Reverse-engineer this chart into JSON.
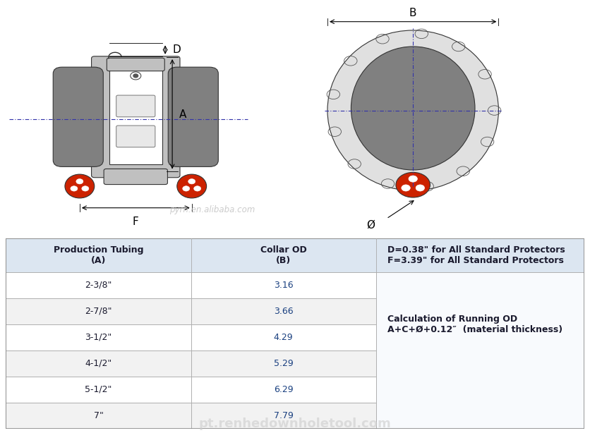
{
  "bg_color": "#ffffff",
  "table": {
    "col1_header": "Production Tubing\n(A)",
    "col2_header": "Collar OD\n(B)",
    "col3_header_line1": "D=0.38\" for All Standard Protectors",
    "col3_header_line2": "F=3.39\" for All Standard Protectors",
    "col3_body_line1": "Calculation of Running OD",
    "col3_body_line2": "A+C+Ø+0.12″  (material thickness)",
    "rows": [
      [
        "2-3/8\"",
        "3.16"
      ],
      [
        "2-7/8\"",
        "3.66"
      ],
      [
        "3-1/2\"",
        "4.29"
      ],
      [
        "4-1/2\"",
        "5.29"
      ],
      [
        "5-1/2\"",
        "6.29"
      ],
      [
        "7\"",
        "7.79"
      ]
    ],
    "header_bg": "#dce6f1",
    "row_bg_odd": "#ffffff",
    "row_bg_even": "#f2f2f2",
    "border_color": "#aaaaaa",
    "text_color": "#1a1a2e",
    "value_color": "#1a4080",
    "font_size": 9,
    "header_font_size": 9
  },
  "diagram": {
    "watermark1": "pyrh.en.alibaba.com",
    "watermark2": "pt.renhedownholetool.com",
    "gray": "#808080",
    "light_gray": "#c0c0c0",
    "red": "#cc2200",
    "outline": "#333333"
  }
}
